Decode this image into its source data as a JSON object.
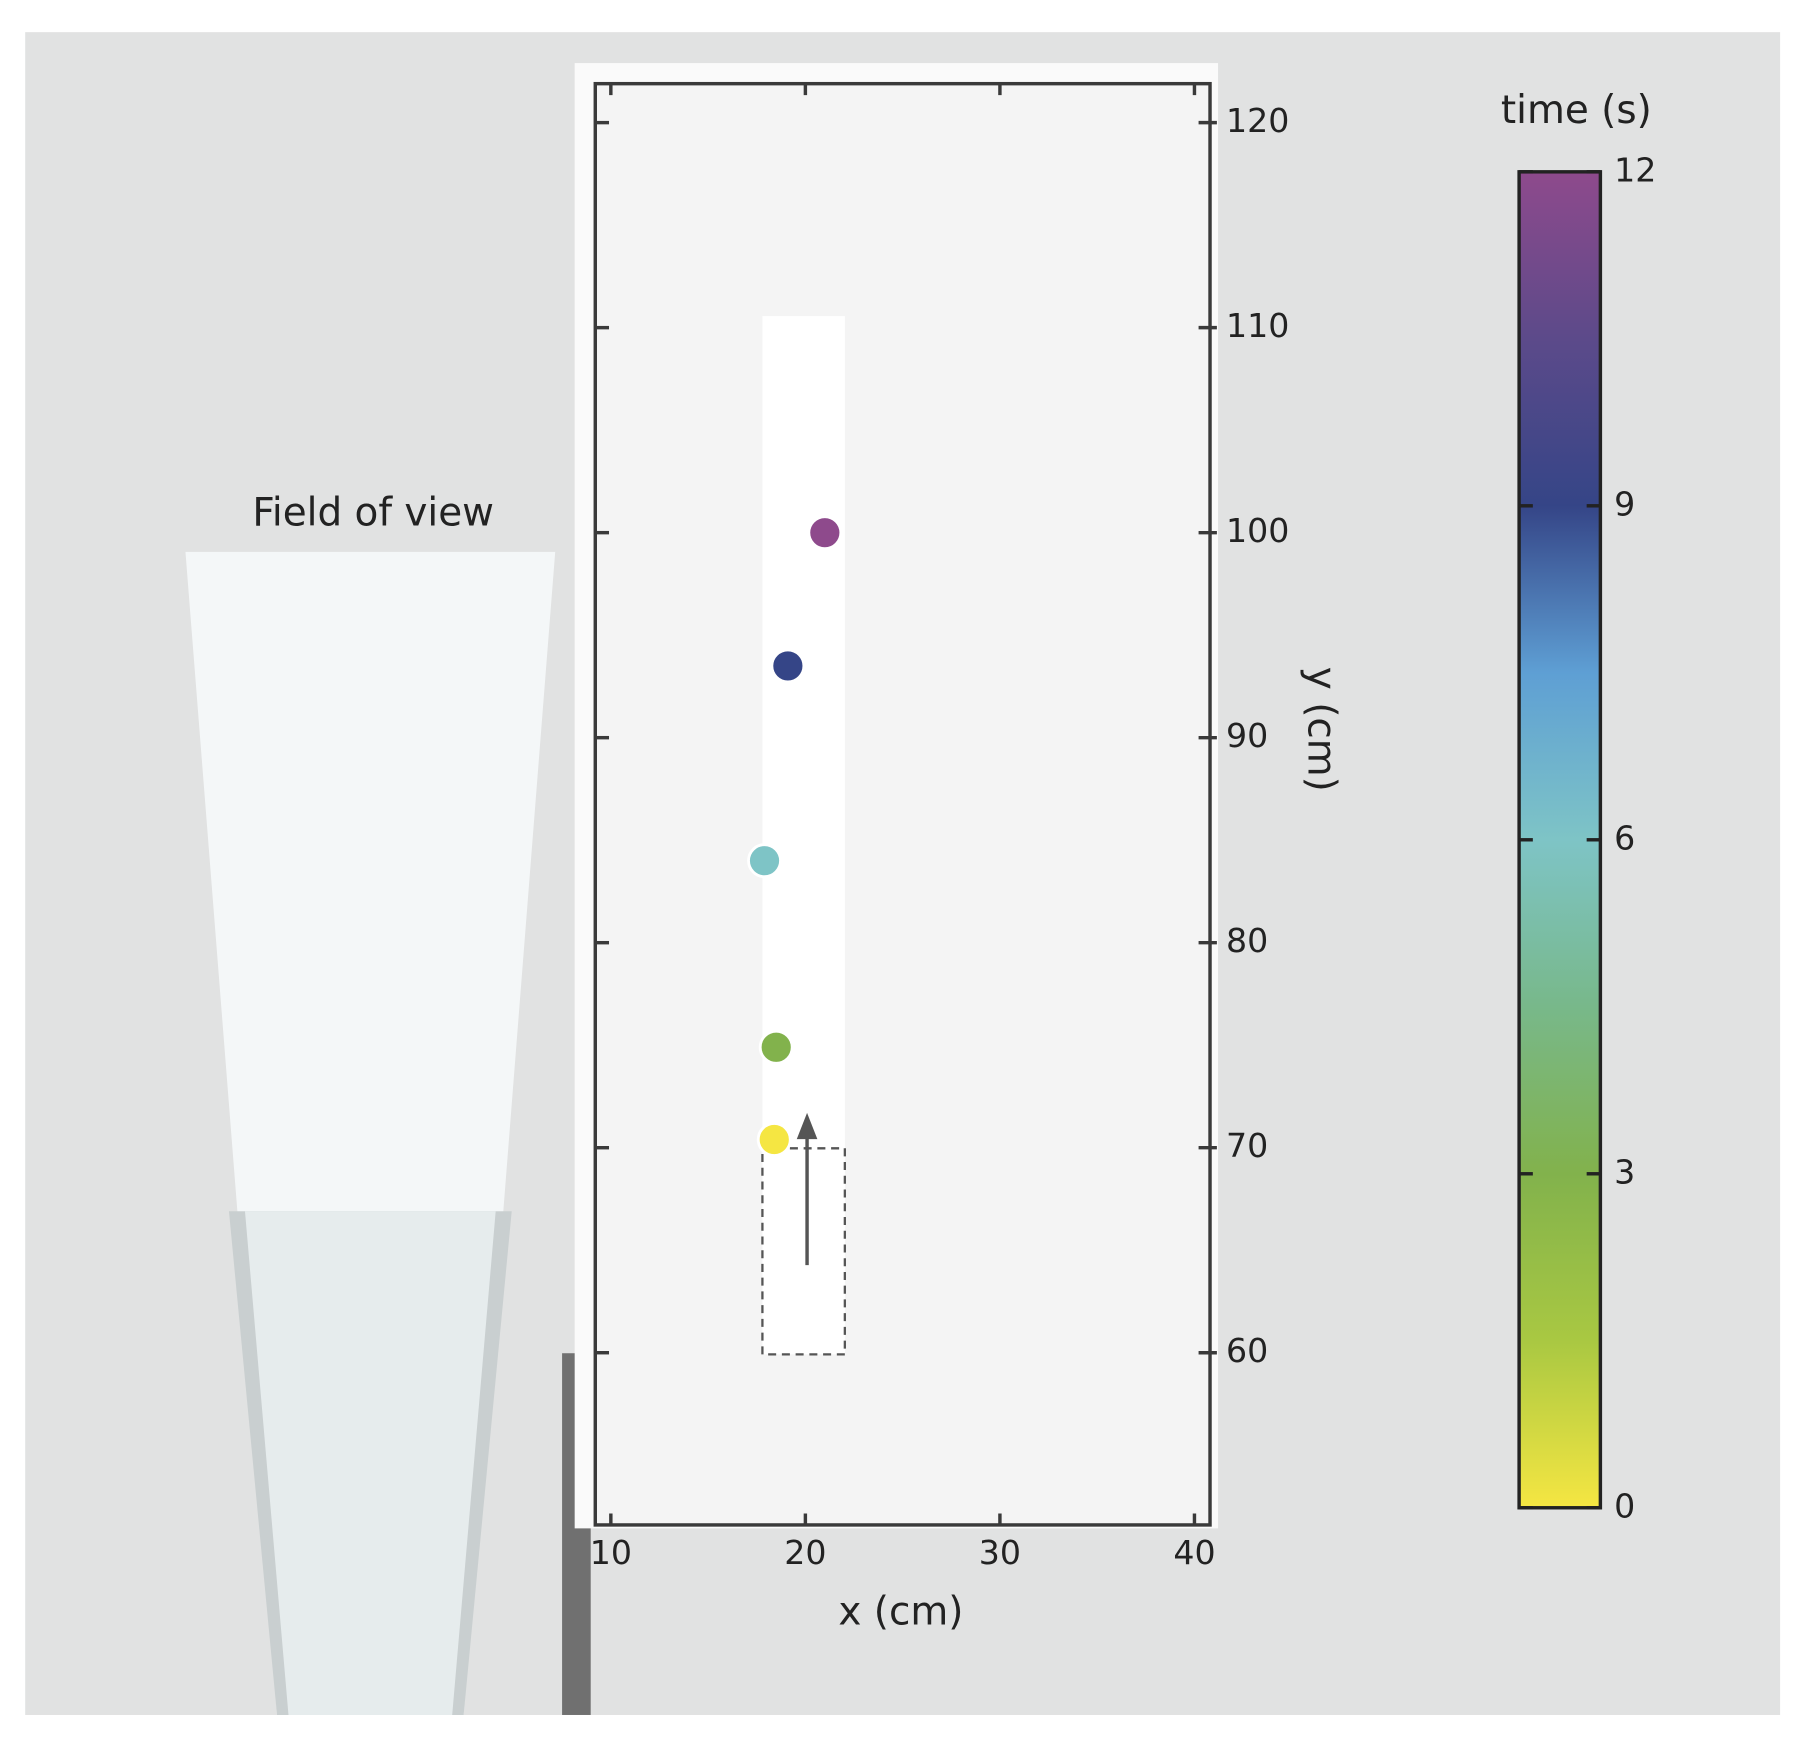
{
  "chart_data": {
    "type": "scatter",
    "annotation": "Field of view",
    "x": [
      18.4,
      18.5,
      17.9,
      19.1,
      21.0
    ],
    "y": [
      70.4,
      74.9,
      84.0,
      93.5,
      100.0
    ],
    "time": [
      0,
      3,
      6,
      9,
      12
    ],
    "xlabel": "x (cm)",
    "ylabel": "y (cm)",
    "xlim": [
      9.2,
      40.8
    ],
    "xticks": [
      10,
      20,
      30,
      40
    ],
    "ylim": [
      51.6,
      121.9
    ],
    "yticks": [
      60,
      70,
      80,
      90,
      100,
      110,
      120
    ],
    "colorbar": {
      "label": "time (s)",
      "lim": [
        0,
        12
      ],
      "ticks": [
        0,
        3,
        6,
        9,
        12
      ],
      "colors": [
        "#f5e642",
        "#a9c842",
        "#82b24c",
        "#78b88a",
        "#7ec4c6",
        "#5e9fd4",
        "#354587",
        "#5c4a8a",
        "#8e4a8c"
      ]
    }
  }
}
